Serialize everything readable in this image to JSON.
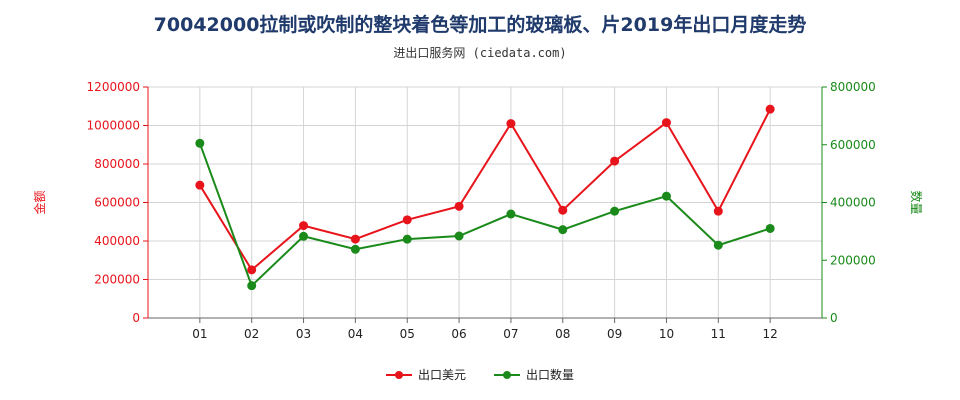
{
  "chart_data": {
    "type": "line",
    "title": "70042000拉制或吹制的整块着色等加工的玻璃板、片2019年出口月度走势",
    "subtitle": "进出口服务网 (ciedata.com)",
    "categories": [
      "01",
      "02",
      "03",
      "04",
      "05",
      "06",
      "07",
      "08",
      "09",
      "10",
      "11",
      "12"
    ],
    "left_axis": {
      "label": "金额",
      "min": 0,
      "max": 1200000,
      "ticks": [
        "0",
        "200000",
        "400000",
        "600000",
        "800000",
        "1000000",
        "1200000"
      ],
      "color": "#e8141b"
    },
    "right_axis": {
      "label": "数量",
      "min": 0,
      "max": 800000,
      "ticks": [
        "0",
        "200000",
        "400000",
        "600000",
        "800000"
      ],
      "color": "#1a8a1a"
    },
    "series": [
      {
        "name": "出口美元",
        "axis": "left",
        "color": "#e8141b",
        "values": [
          690000,
          250000,
          480000,
          410000,
          510000,
          580000,
          1010000,
          560000,
          815000,
          1015000,
          555000,
          1085000
        ]
      },
      {
        "name": "出口数量",
        "axis": "right",
        "color": "#1a8a1a",
        "values": [
          605000,
          112000,
          283000,
          238000,
          273000,
          284000,
          360000,
          306000,
          370000,
          422000,
          252000,
          310000
        ]
      }
    ],
    "grid": true,
    "legend_position": "bottom"
  }
}
